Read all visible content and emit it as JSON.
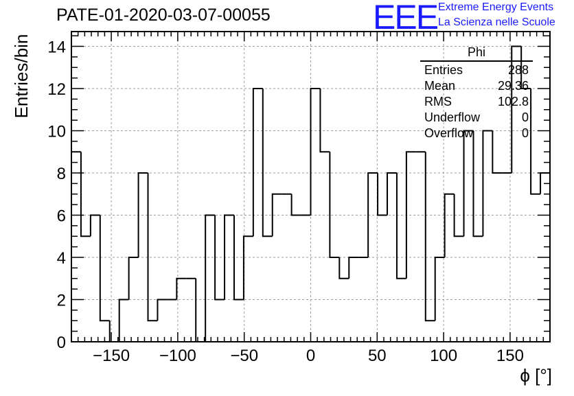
{
  "header": {
    "title": "PATE-01-2020-03-07-00055",
    "logo_text": "EEE",
    "logo_line1": "Extreme Energy Events",
    "logo_line2": "La Scienza nelle Scuole",
    "logo_color": "#1a1aff"
  },
  "stats": {
    "name": "Phi",
    "rows": [
      {
        "label": "Entries",
        "value": "288"
      },
      {
        "label": "Mean",
        "value": "29.36"
      },
      {
        "label": "RMS",
        "value": "102.8"
      },
      {
        "label": "Underflow",
        "value": "0"
      },
      {
        "label": "Overflow",
        "value": "0"
      }
    ]
  },
  "chart_data": {
    "type": "bar",
    "histogram": true,
    "xlabel": "ϕ [°]",
    "ylabel": "Entries/bin",
    "xlim": [
      -180,
      180
    ],
    "ylim": [
      0,
      14.7
    ],
    "bin_width": 7.2,
    "x_ticks": [
      -150,
      -100,
      -50,
      0,
      50,
      100,
      150
    ],
    "x_tick_labels": [
      "−150",
      "−100",
      "−50",
      "0",
      "50",
      "100",
      "150"
    ],
    "y_ticks": [
      0,
      2,
      4,
      6,
      8,
      10,
      12,
      14
    ],
    "y_tick_labels": [
      "0",
      "2",
      "4",
      "6",
      "8",
      "10",
      "12",
      "14"
    ],
    "grid": true,
    "legend": "stats box top-right",
    "values": [
      9,
      5,
      6,
      1,
      0,
      2,
      4,
      8,
      1,
      2,
      2,
      3,
      3,
      0,
      6,
      2,
      6,
      2,
      5,
      12,
      5,
      7,
      7,
      6,
      6,
      12,
      9,
      4,
      3,
      4,
      4,
      8,
      6,
      8,
      3,
      9,
      9,
      1,
      4,
      7,
      5,
      10,
      5,
      10,
      8,
      8,
      14,
      12,
      7,
      8
    ]
  }
}
